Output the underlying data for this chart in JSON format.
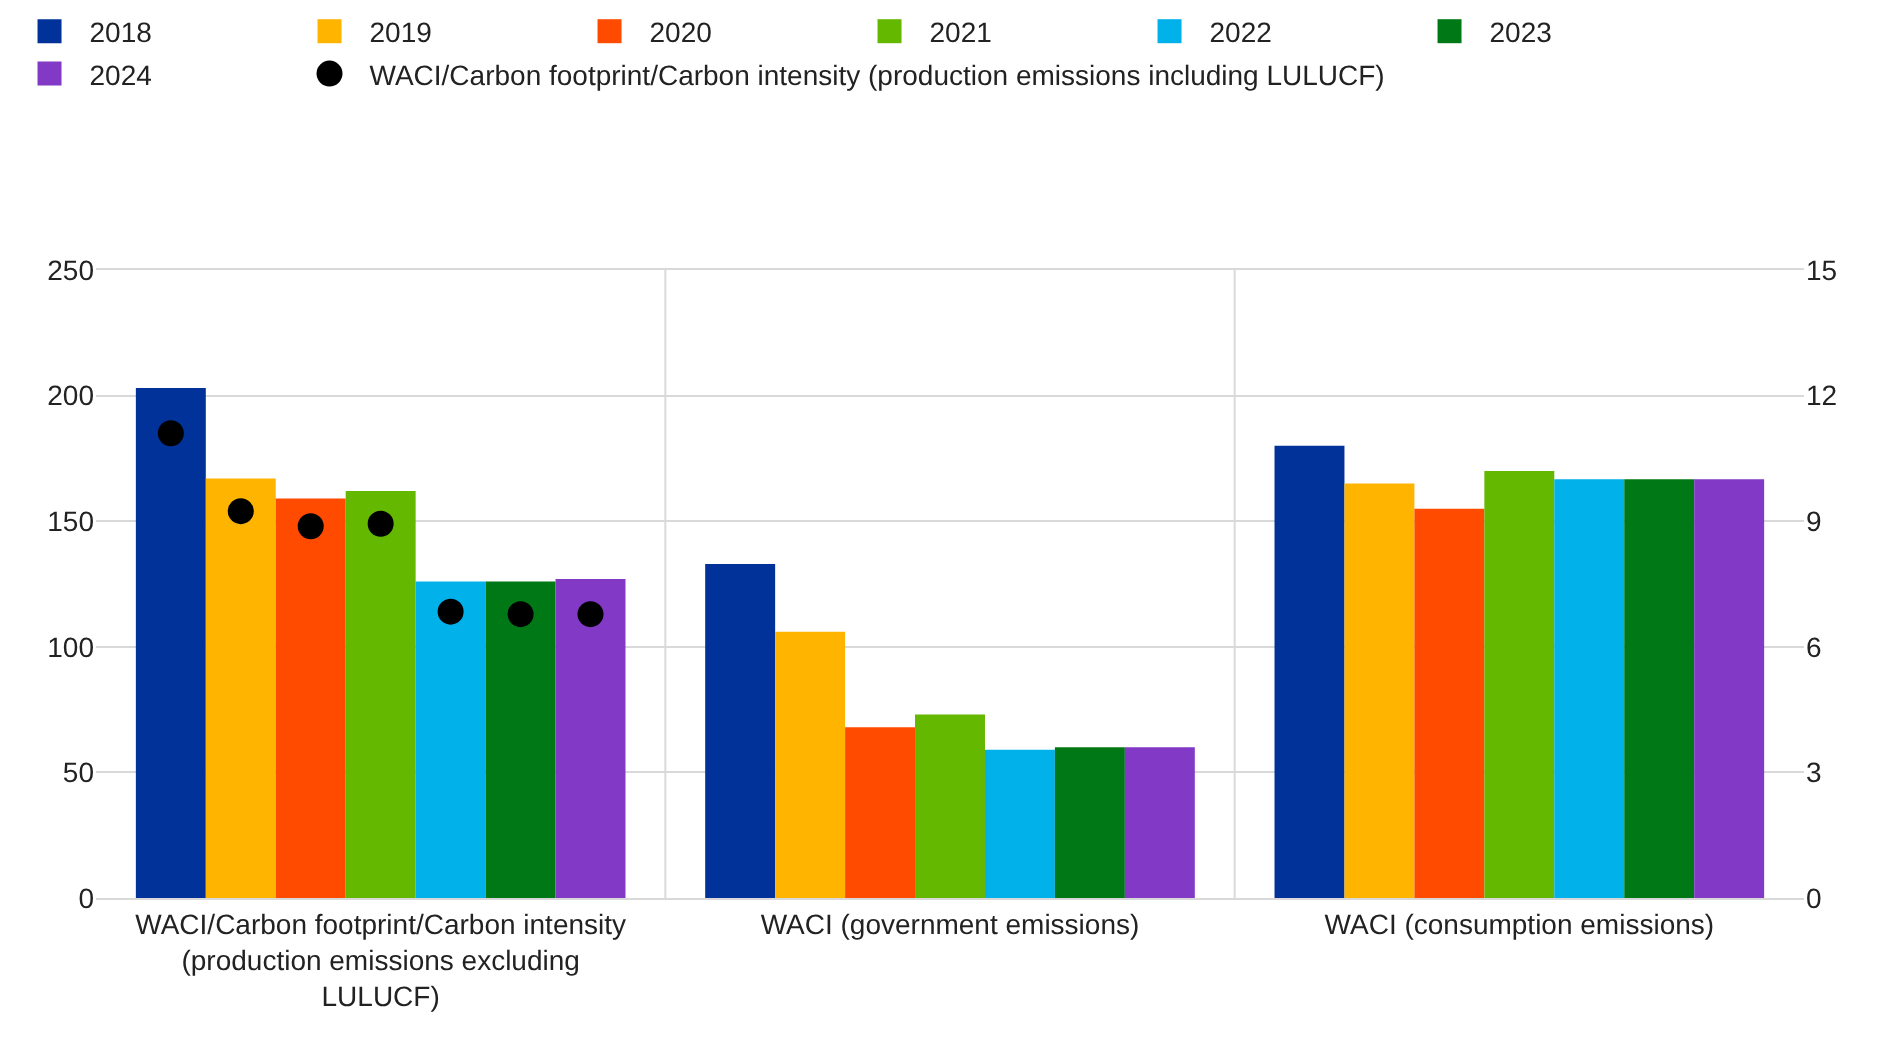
{
  "chart_data": {
    "type": "bar",
    "categories": [
      "WACI/Carbon footprint/Carbon intensity (production emissions excluding LULUCF)",
      "WACI (government emissions)",
      "WACI (consumption emissions)"
    ],
    "series": [
      {
        "name": "2018",
        "color": "#003299",
        "values": [
          203,
          133,
          null
        ]
      },
      {
        "name": "2019",
        "color": "#ffb400",
        "values": [
          167,
          106,
          null
        ]
      },
      {
        "name": "2020",
        "color": "#ff4b00",
        "values": [
          159,
          68,
          null
        ]
      },
      {
        "name": "2021",
        "color": "#65b800",
        "values": [
          162,
          73,
          null
        ]
      },
      {
        "name": "2022",
        "color": "#00b1ea",
        "values": [
          126,
          59,
          null
        ]
      },
      {
        "name": "2023",
        "color": "#007816",
        "values": [
          126,
          60,
          null
        ]
      },
      {
        "name": "2024",
        "color": "#8139c6",
        "values": [
          127,
          60,
          null
        ]
      },
      {
        "color": "#003299",
        "axis": "y2",
        "values": [
          null,
          null,
          10.8
        ]
      },
      {
        "color": "#ffb400",
        "axis": "y2",
        "values": [
          null,
          null,
          9.9
        ]
      },
      {
        "color": "#ff4b00",
        "axis": "y2",
        "values": [
          null,
          null,
          9.3
        ]
      },
      {
        "color": "#65b800",
        "axis": "y2",
        "values": [
          null,
          null,
          10.2
        ]
      },
      {
        "color": "#00b1ea",
        "axis": "y2",
        "values": [
          null,
          null,
          10.0
        ]
      },
      {
        "color": "#007816",
        "axis": "y2",
        "values": [
          null,
          null,
          10.0
        ]
      },
      {
        "color": "#8139c6",
        "axis": "y2",
        "values": [
          null,
          null,
          10.0
        ]
      },
      {
        "name": "WACI/Carbon footprint/Carbon intensity (production emissions including LULUCF)",
        "type": "scatter",
        "marker": "circle",
        "color": "#000000",
        "x": [
          "WACI/Carbon footprint/Carbon intensity (production emissions excluding LULUCF)",
          "WACI/Carbon footprint/Carbon intensity (production emissions excluding LULUCF)",
          "WACI/Carbon footprint/Carbon intensity (production emissions excluding LULUCF)",
          "WACI/Carbon footprint/Carbon intensity (production emissions excluding LULUCF)",
          "WACI/Carbon footprint/Carbon intensity (production emissions excluding LULUCF)",
          "WACI/Carbon footprint/Carbon intensity (production emissions excluding LULUCF)",
          "WACI/Carbon footprint/Carbon intensity (production emissions excluding LULUCF)"
        ],
        "values": [
          185,
          154,
          148,
          149,
          114,
          113,
          113
        ]
      }
    ],
    "ylim": [
      0,
      250
    ],
    "yticks": [
      0,
      50,
      100,
      150,
      200,
      250
    ],
    "y2lim": [
      0,
      15
    ],
    "y2ticks": [
      0,
      3,
      6,
      9,
      12,
      15
    ],
    "grid": "y",
    "legend": "top left"
  }
}
